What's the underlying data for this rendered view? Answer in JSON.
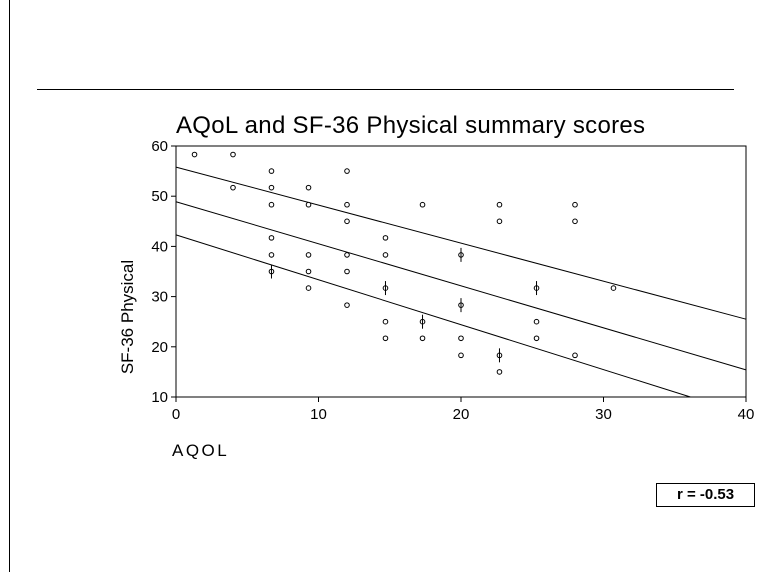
{
  "chart_data": {
    "type": "scatter",
    "title": "AQoL and SF-36 Physical summary scores",
    "xlabel": "AQOL",
    "ylabel": "SF-36 Physical",
    "xlim": [
      0,
      40
    ],
    "ylim": [
      10,
      60
    ],
    "xticks": [
      "0",
      "10",
      "20",
      "30",
      "40"
    ],
    "yticks": [
      "10",
      "20",
      "30",
      "40",
      "50",
      "60"
    ],
    "grid": false,
    "points": [
      {
        "x": 1.3,
        "y": 58.3
      },
      {
        "x": 4.0,
        "y": 58.3
      },
      {
        "x": 4.0,
        "y": 51.7
      },
      {
        "x": 6.7,
        "y": 55.0
      },
      {
        "x": 6.7,
        "y": 51.7
      },
      {
        "x": 6.7,
        "y": 48.3
      },
      {
        "x": 6.7,
        "y": 41.7
      },
      {
        "x": 6.7,
        "y": 38.3
      },
      {
        "x": 6.7,
        "y": 35.0,
        "jitter": true
      },
      {
        "x": 9.3,
        "y": 51.7
      },
      {
        "x": 9.3,
        "y": 48.3
      },
      {
        "x": 9.3,
        "y": 38.3
      },
      {
        "x": 9.3,
        "y": 35.0
      },
      {
        "x": 9.3,
        "y": 31.7
      },
      {
        "x": 12.0,
        "y": 55.0
      },
      {
        "x": 12.0,
        "y": 48.3
      },
      {
        "x": 12.0,
        "y": 45.0
      },
      {
        "x": 12.0,
        "y": 38.3
      },
      {
        "x": 12.0,
        "y": 35.0
      },
      {
        "x": 12.0,
        "y": 28.3
      },
      {
        "x": 14.7,
        "y": 41.7
      },
      {
        "x": 14.7,
        "y": 38.3
      },
      {
        "x": 14.7,
        "y": 31.7,
        "jitter": true
      },
      {
        "x": 14.7,
        "y": 25.0
      },
      {
        "x": 14.7,
        "y": 21.7
      },
      {
        "x": 17.3,
        "y": 48.3
      },
      {
        "x": 17.3,
        "y": 25.0,
        "jitter": true
      },
      {
        "x": 17.3,
        "y": 21.7
      },
      {
        "x": 20.0,
        "y": 38.3,
        "jitter": true
      },
      {
        "x": 20.0,
        "y": 28.3,
        "jitter": true
      },
      {
        "x": 20.0,
        "y": 21.7
      },
      {
        "x": 20.0,
        "y": 18.3
      },
      {
        "x": 22.7,
        "y": 48.3
      },
      {
        "x": 22.7,
        "y": 45.0
      },
      {
        "x": 22.7,
        "y": 18.3,
        "jitter": true
      },
      {
        "x": 22.7,
        "y": 15.0
      },
      {
        "x": 25.3,
        "y": 31.7,
        "jitter": true
      },
      {
        "x": 25.3,
        "y": 25.0
      },
      {
        "x": 25.3,
        "y": 21.7
      },
      {
        "x": 28.0,
        "y": 48.3
      },
      {
        "x": 28.0,
        "y": 45.0
      },
      {
        "x": 28.0,
        "y": 18.3
      },
      {
        "x": 30.7,
        "y": 31.7
      }
    ],
    "lines": [
      {
        "x": [
          0,
          40
        ],
        "y": [
          55.8,
          25.5
        ]
      },
      {
        "x": [
          0,
          40
        ],
        "y": [
          48.9,
          15.4
        ]
      },
      {
        "x": [
          0,
          36.1
        ],
        "y": [
          42.3,
          10.0
        ]
      }
    ],
    "annotation": "r = -0.53"
  }
}
